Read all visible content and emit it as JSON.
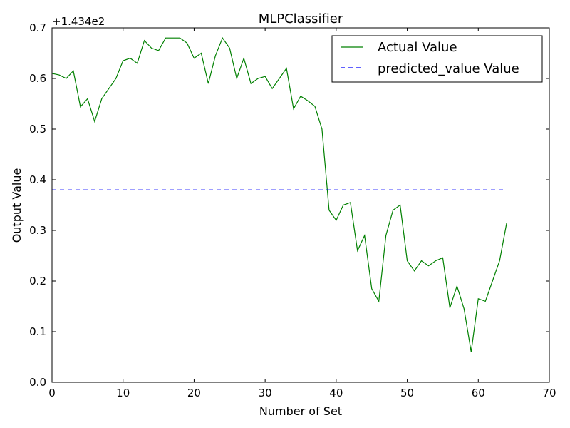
{
  "chart_data": {
    "type": "line",
    "title": "MLPClassifier",
    "xlabel": "Number of Set",
    "ylabel": "Output Value",
    "offset_text": "+1.434e2",
    "xlim": [
      0,
      70
    ],
    "ylim": [
      0.0,
      0.7
    ],
    "xticks": [
      0,
      10,
      20,
      30,
      40,
      50,
      60,
      70
    ],
    "xtick_labels": [
      "0",
      "10",
      "20",
      "30",
      "40",
      "50",
      "60",
      "70"
    ],
    "yticks": [
      0.0,
      0.1,
      0.2,
      0.3,
      0.4,
      0.5,
      0.6,
      0.7
    ],
    "ytick_labels": [
      "0.0",
      "0.1",
      "0.2",
      "0.3",
      "0.4",
      "0.5",
      "0.6",
      "0.7"
    ],
    "grid": false,
    "legend_position": "top-right",
    "series": [
      {
        "name": "Actual Value",
        "color": "#008000",
        "style": "solid",
        "x": [
          0,
          1,
          2,
          3,
          4,
          5,
          6,
          7,
          8,
          9,
          10,
          11,
          12,
          13,
          14,
          15,
          16,
          17,
          18,
          19,
          20,
          21,
          22,
          23,
          24,
          25,
          26,
          27,
          28,
          29,
          30,
          31,
          32,
          33,
          34,
          35,
          36,
          37,
          38,
          39,
          40,
          41,
          42,
          43,
          44,
          45,
          46,
          47,
          48,
          49,
          50,
          51,
          52,
          53,
          54,
          55,
          56,
          57,
          58,
          59,
          60,
          61,
          62,
          63,
          64
        ],
        "values": [
          0.61,
          0.607,
          0.6,
          0.615,
          0.544,
          0.56,
          0.515,
          0.56,
          0.58,
          0.6,
          0.635,
          0.64,
          0.63,
          0.675,
          0.66,
          0.655,
          0.68,
          0.68,
          0.68,
          0.67,
          0.64,
          0.65,
          0.59,
          0.645,
          0.68,
          0.66,
          0.6,
          0.64,
          0.59,
          0.6,
          0.604,
          0.58,
          0.6,
          0.62,
          0.54,
          0.565,
          0.556,
          0.545,
          0.5,
          0.34,
          0.32,
          0.35,
          0.355,
          0.26,
          0.29,
          0.185,
          0.16,
          0.29,
          0.34,
          0.35,
          0.24,
          0.22,
          0.24,
          0.23,
          0.24,
          0.246,
          0.147,
          0.19,
          0.145,
          0.06,
          0.165,
          0.16,
          0.2,
          0.24,
          0.315
        ]
      },
      {
        "name": "predicted_value Value",
        "color": "#0000ff",
        "style": "dashed",
        "x": [
          0,
          64
        ],
        "values": [
          0.38,
          0.38
        ]
      }
    ]
  }
}
